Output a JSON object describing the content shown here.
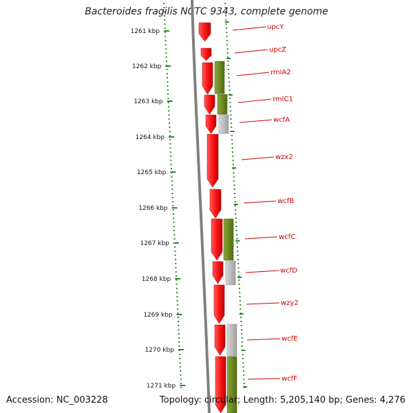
{
  "title": "Bacteroides fragilis NCTC 9343, complete genome",
  "accession": "Accession: NC_003228",
  "topology": "Topology: circular; Length: 5,205,140 bp; Genes: 4,276",
  "colors": {
    "cds": "#ff1a1a",
    "label": "#cc0000",
    "backbone": "#808080",
    "olive": "#6e8c1e",
    "grey": "#b8b8b8",
    "ruler": "#2a8a2a"
  },
  "ticks": [
    "1261 kbp",
    "1262 kbp",
    "1263 kbp",
    "1264 kbp",
    "1265 kbp",
    "1266 kbp",
    "1267 kbp",
    "1268 kbp",
    "1269 kbp",
    "1270 kbp",
    "1271 kbp"
  ],
  "genes": [
    "upcY",
    "upcZ",
    "rmlA2",
    "rmlC1",
    "wcfA",
    "wzx2",
    "wcfB",
    "wcfC",
    "wcfD",
    "wzy2",
    "wcfE",
    "wcfF"
  ]
}
